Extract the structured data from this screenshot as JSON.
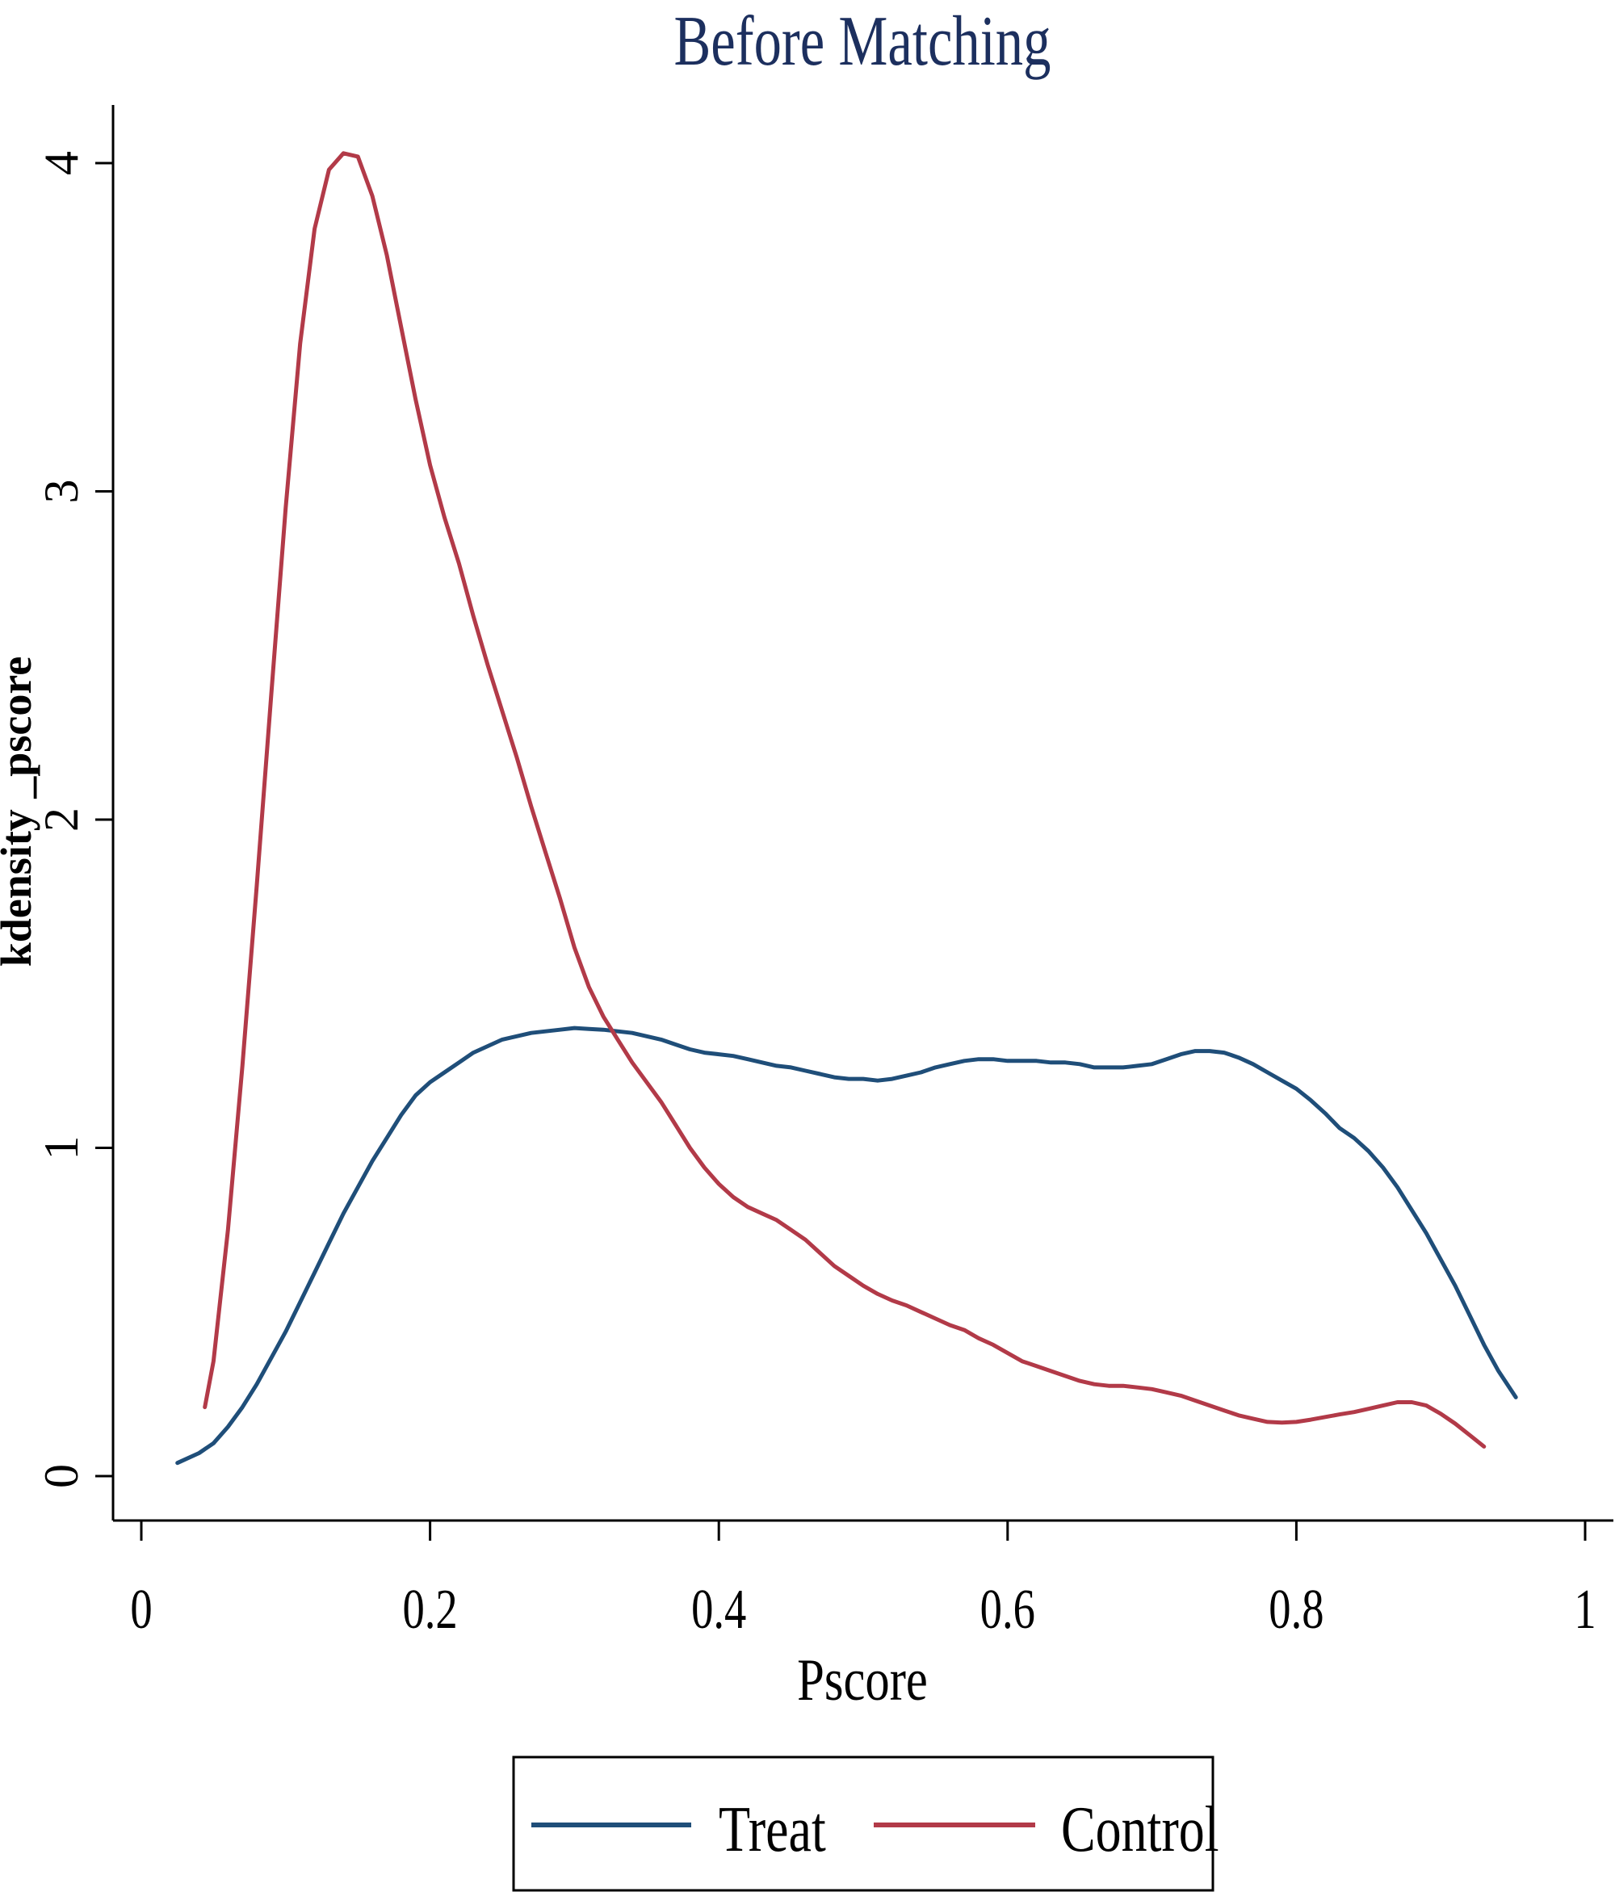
{
  "chart_data": {
    "type": "line",
    "title": "Before Matching",
    "xlabel": "Pscore",
    "ylabel": "kdensity _pscore",
    "xlim": [
      0,
      1
    ],
    "ylim": [
      0,
      4
    ],
    "x_ticks": [
      0,
      0.2,
      0.4,
      0.6,
      0.8,
      1
    ],
    "x_tick_labels": [
      "0",
      "0.2",
      "0.4",
      "0.6",
      "0.8",
      "1"
    ],
    "y_ticks": [
      0,
      1,
      2,
      3,
      4
    ],
    "y_tick_labels": [
      "0",
      "1",
      "2",
      "3",
      "4"
    ],
    "grid": false,
    "legend_position": "bottom",
    "series": [
      {
        "name": "Treat",
        "color": "#1f4e79",
        "points": [
          [
            0.025,
            0.04
          ],
          [
            0.04,
            0.07
          ],
          [
            0.05,
            0.1
          ],
          [
            0.06,
            0.15
          ],
          [
            0.07,
            0.21
          ],
          [
            0.08,
            0.28
          ],
          [
            0.09,
            0.36
          ],
          [
            0.1,
            0.44
          ],
          [
            0.11,
            0.53
          ],
          [
            0.12,
            0.62
          ],
          [
            0.13,
            0.71
          ],
          [
            0.14,
            0.8
          ],
          [
            0.15,
            0.88
          ],
          [
            0.16,
            0.96
          ],
          [
            0.17,
            1.03
          ],
          [
            0.18,
            1.1
          ],
          [
            0.19,
            1.16
          ],
          [
            0.2,
            1.2
          ],
          [
            0.21,
            1.23
          ],
          [
            0.22,
            1.26
          ],
          [
            0.23,
            1.29
          ],
          [
            0.24,
            1.31
          ],
          [
            0.25,
            1.33
          ],
          [
            0.26,
            1.34
          ],
          [
            0.27,
            1.35
          ],
          [
            0.28,
            1.355
          ],
          [
            0.29,
            1.36
          ],
          [
            0.3,
            1.365
          ],
          [
            0.31,
            1.362
          ],
          [
            0.32,
            1.36
          ],
          [
            0.33,
            1.355
          ],
          [
            0.34,
            1.35
          ],
          [
            0.35,
            1.34
          ],
          [
            0.36,
            1.33
          ],
          [
            0.37,
            1.315
          ],
          [
            0.38,
            1.3
          ],
          [
            0.39,
            1.29
          ],
          [
            0.4,
            1.285
          ],
          [
            0.41,
            1.28
          ],
          [
            0.42,
            1.27
          ],
          [
            0.43,
            1.26
          ],
          [
            0.44,
            1.25
          ],
          [
            0.45,
            1.245
          ],
          [
            0.46,
            1.235
          ],
          [
            0.47,
            1.225
          ],
          [
            0.48,
            1.215
          ],
          [
            0.49,
            1.21
          ],
          [
            0.5,
            1.21
          ],
          [
            0.51,
            1.205
          ],
          [
            0.52,
            1.21
          ],
          [
            0.53,
            1.22
          ],
          [
            0.54,
            1.23
          ],
          [
            0.55,
            1.245
          ],
          [
            0.56,
            1.255
          ],
          [
            0.57,
            1.265
          ],
          [
            0.58,
            1.27
          ],
          [
            0.59,
            1.27
          ],
          [
            0.6,
            1.265
          ],
          [
            0.61,
            1.265
          ],
          [
            0.62,
            1.265
          ],
          [
            0.63,
            1.26
          ],
          [
            0.64,
            1.26
          ],
          [
            0.65,
            1.255
          ],
          [
            0.66,
            1.245
          ],
          [
            0.67,
            1.245
          ],
          [
            0.68,
            1.245
          ],
          [
            0.69,
            1.25
          ],
          [
            0.7,
            1.255
          ],
          [
            0.71,
            1.27
          ],
          [
            0.72,
            1.285
          ],
          [
            0.73,
            1.295
          ],
          [
            0.74,
            1.295
          ],
          [
            0.75,
            1.29
          ],
          [
            0.76,
            1.275
          ],
          [
            0.77,
            1.255
          ],
          [
            0.78,
            1.23
          ],
          [
            0.79,
            1.205
          ],
          [
            0.8,
            1.18
          ],
          [
            0.81,
            1.145
          ],
          [
            0.82,
            1.105
          ],
          [
            0.83,
            1.06
          ],
          [
            0.84,
            1.03
          ],
          [
            0.85,
            0.99
          ],
          [
            0.86,
            0.94
          ],
          [
            0.87,
            0.88
          ],
          [
            0.88,
            0.81
          ],
          [
            0.89,
            0.74
          ],
          [
            0.9,
            0.66
          ],
          [
            0.91,
            0.58
          ],
          [
            0.92,
            0.49
          ],
          [
            0.93,
            0.4
          ],
          [
            0.94,
            0.32
          ],
          [
            0.952,
            0.24
          ]
        ]
      },
      {
        "name": "Control",
        "color": "#b23a48",
        "points": [
          [
            0.044,
            0.21
          ],
          [
            0.05,
            0.35
          ],
          [
            0.06,
            0.75
          ],
          [
            0.07,
            1.25
          ],
          [
            0.08,
            1.8
          ],
          [
            0.09,
            2.38
          ],
          [
            0.1,
            2.95
          ],
          [
            0.11,
            3.45
          ],
          [
            0.12,
            3.8
          ],
          [
            0.13,
            3.98
          ],
          [
            0.14,
            4.03
          ],
          [
            0.15,
            4.02
          ],
          [
            0.16,
            3.9
          ],
          [
            0.17,
            3.72
          ],
          [
            0.18,
            3.5
          ],
          [
            0.19,
            3.28
          ],
          [
            0.2,
            3.08
          ],
          [
            0.21,
            2.92
          ],
          [
            0.22,
            2.78
          ],
          [
            0.23,
            2.62
          ],
          [
            0.24,
            2.47
          ],
          [
            0.25,
            2.33
          ],
          [
            0.26,
            2.19
          ],
          [
            0.27,
            2.04
          ],
          [
            0.28,
            1.9
          ],
          [
            0.29,
            1.76
          ],
          [
            0.3,
            1.61
          ],
          [
            0.31,
            1.49
          ],
          [
            0.32,
            1.4
          ],
          [
            0.33,
            1.33
          ],
          [
            0.34,
            1.26
          ],
          [
            0.35,
            1.2
          ],
          [
            0.36,
            1.14
          ],
          [
            0.37,
            1.07
          ],
          [
            0.38,
            1.0
          ],
          [
            0.39,
            0.94
          ],
          [
            0.4,
            0.89
          ],
          [
            0.41,
            0.85
          ],
          [
            0.42,
            0.82
          ],
          [
            0.43,
            0.8
          ],
          [
            0.44,
            0.78
          ],
          [
            0.45,
            0.75
          ],
          [
            0.46,
            0.72
          ],
          [
            0.47,
            0.68
          ],
          [
            0.48,
            0.64
          ],
          [
            0.49,
            0.61
          ],
          [
            0.5,
            0.58
          ],
          [
            0.51,
            0.555
          ],
          [
            0.52,
            0.535
          ],
          [
            0.53,
            0.52
          ],
          [
            0.54,
            0.5
          ],
          [
            0.55,
            0.48
          ],
          [
            0.56,
            0.46
          ],
          [
            0.57,
            0.445
          ],
          [
            0.58,
            0.42
          ],
          [
            0.59,
            0.4
          ],
          [
            0.6,
            0.375
          ],
          [
            0.61,
            0.35
          ],
          [
            0.62,
            0.335
          ],
          [
            0.63,
            0.32
          ],
          [
            0.64,
            0.305
          ],
          [
            0.65,
            0.29
          ],
          [
            0.66,
            0.28
          ],
          [
            0.67,
            0.275
          ],
          [
            0.68,
            0.275
          ],
          [
            0.69,
            0.27
          ],
          [
            0.7,
            0.265
          ],
          [
            0.71,
            0.255
          ],
          [
            0.72,
            0.245
          ],
          [
            0.73,
            0.23
          ],
          [
            0.74,
            0.215
          ],
          [
            0.75,
            0.2
          ],
          [
            0.76,
            0.185
          ],
          [
            0.77,
            0.175
          ],
          [
            0.78,
            0.165
          ],
          [
            0.79,
            0.163
          ],
          [
            0.8,
            0.165
          ],
          [
            0.81,
            0.172
          ],
          [
            0.82,
            0.18
          ],
          [
            0.83,
            0.188
          ],
          [
            0.84,
            0.195
          ],
          [
            0.85,
            0.205
          ],
          [
            0.86,
            0.215
          ],
          [
            0.87,
            0.225
          ],
          [
            0.88,
            0.225
          ],
          [
            0.89,
            0.215
          ],
          [
            0.9,
            0.19
          ],
          [
            0.91,
            0.16
          ],
          [
            0.92,
            0.125
          ],
          [
            0.93,
            0.09
          ]
        ]
      }
    ]
  }
}
